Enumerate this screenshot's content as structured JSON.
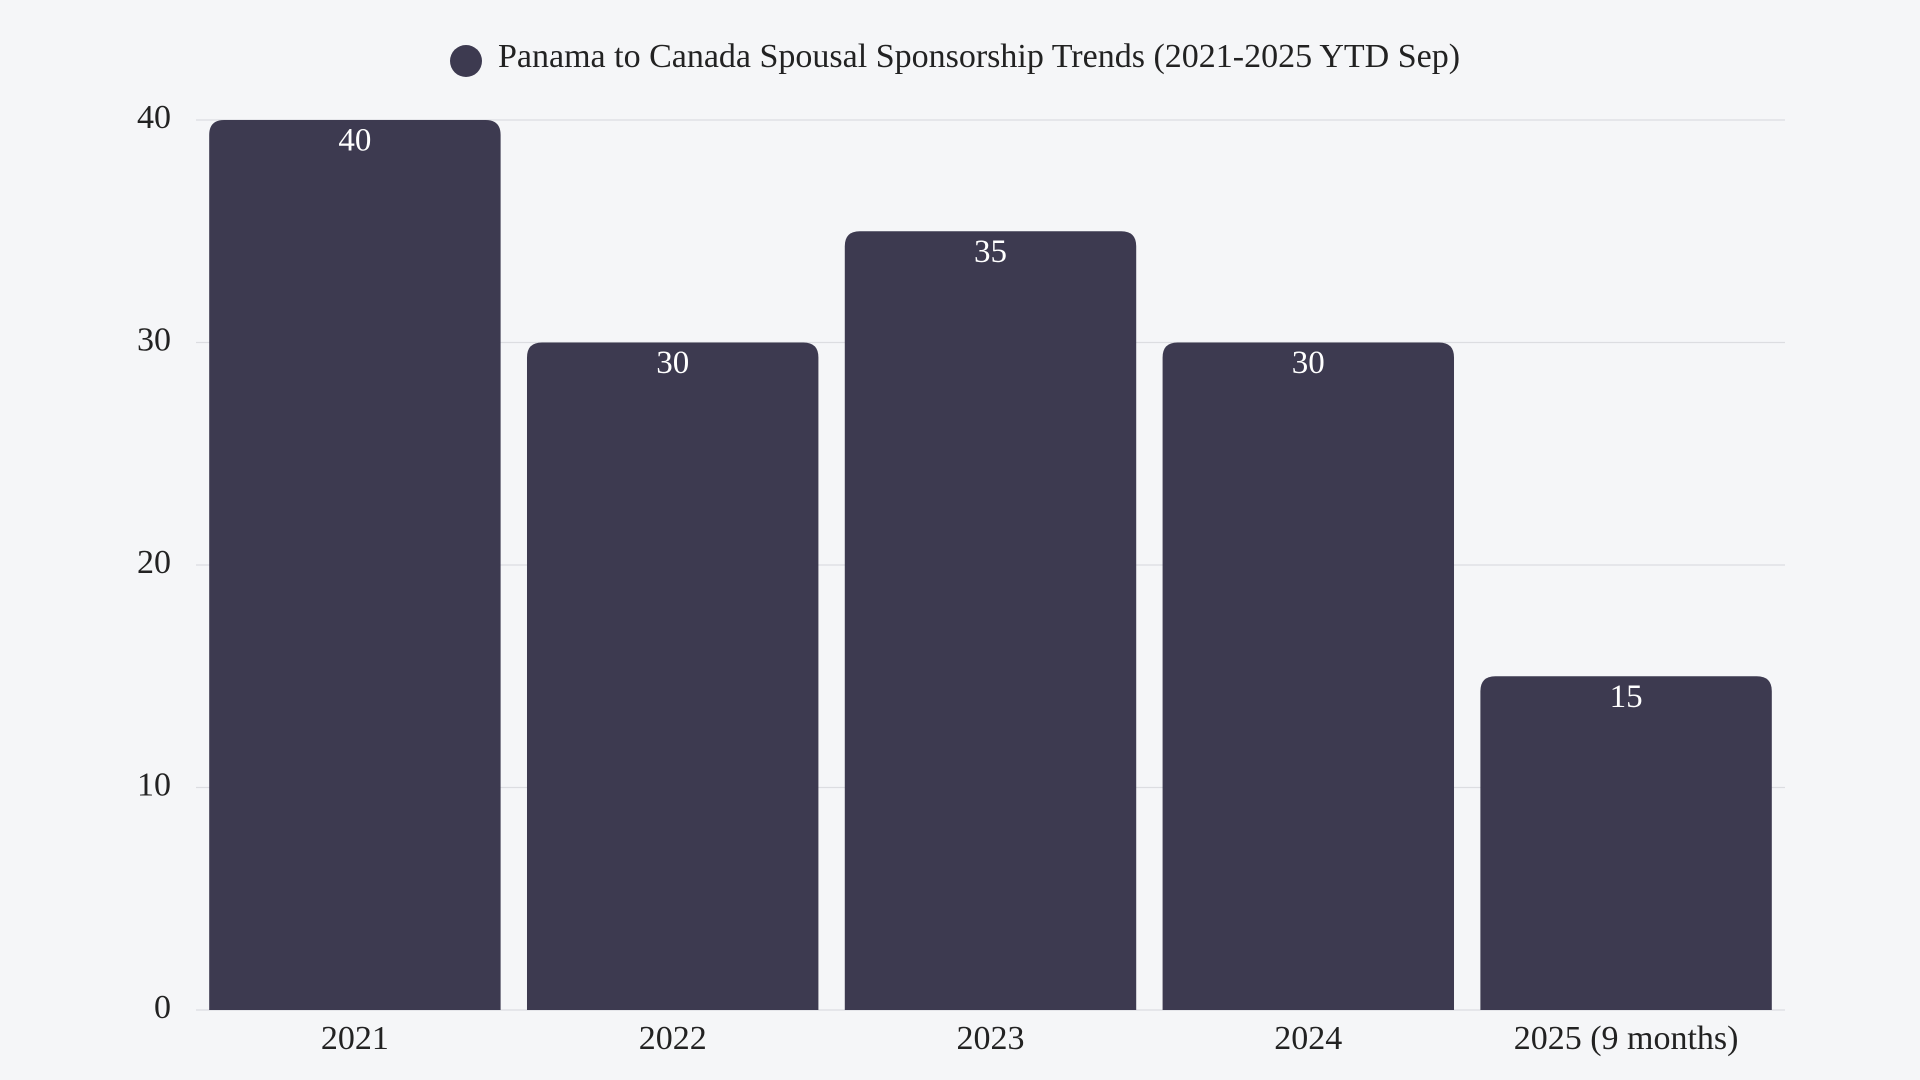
{
  "chart_data": {
    "type": "bar",
    "categories": [
      "2021",
      "2022",
      "2023",
      "2024",
      "2025 (9 months)"
    ],
    "series": [
      {
        "name": "Panama to Canada Spousal Sponsorship Trends (2021-2025 YTD Sep)",
        "color": "#3d3a50",
        "values": [
          40,
          30,
          35,
          30,
          15
        ]
      }
    ],
    "ylim": [
      0,
      40
    ],
    "yticks": [
      0,
      10,
      20,
      30,
      40
    ],
    "grid": true,
    "legend": "top"
  }
}
